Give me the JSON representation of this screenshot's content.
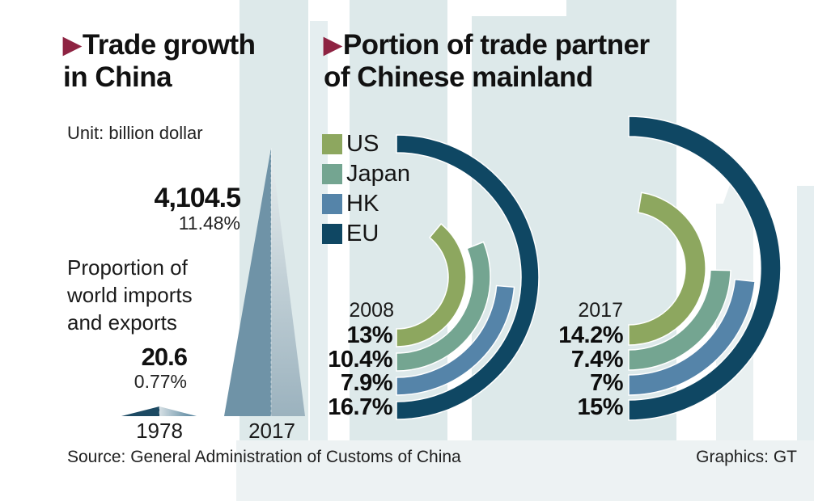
{
  "icons": {
    "title_arrow": "▶"
  },
  "titles": {
    "left": "Trade growth\nin China",
    "right": "Portion of trade partner\nof Chinese mainland"
  },
  "unit_label": "Unit: billion dollar",
  "footer": {
    "source": "Source: General Administration of Customs of China",
    "credit": "Graphics: GT"
  },
  "colors": {
    "accent_maroon": "#8e2342",
    "building_tint": "#dde9ea",
    "building_tint_light": "#e5eef0",
    "spike_1978_left": "#1d4a63",
    "spike_1978_right_start": "#d5dfe4",
    "spike_1978_right_end": "#4e7e98",
    "spike_2017_left": "#6f93a7",
    "spike_2017_right_start": "#e7edee",
    "spike_2017_right_end": "#9bb2be",
    "us": "#8da75f",
    "japan": "#74a591",
    "hk": "#5584a9",
    "eu": "#0f4763"
  },
  "chart_data": [
    {
      "type": "bar",
      "title": "Trade growth in China",
      "unit": "billion dollar",
      "categories": [
        "1978",
        "2017"
      ],
      "values": [
        20.6,
        4104.5
      ],
      "value_labels": [
        "20.6",
        "4,104.5"
      ],
      "share_of_world": [
        "0.77%",
        "11.48%"
      ],
      "note": "Proportion of\nworld imports\nand exports",
      "ylabel": "",
      "xlabel": ""
    },
    {
      "type": "radial-bar",
      "title": "Portion of trade partner of Chinese mainland",
      "categories": [
        "US",
        "Japan",
        "HK",
        "EU"
      ],
      "legend": [
        "US",
        "Japan",
        "HK",
        "EU"
      ],
      "legend_position": "top-left",
      "series": [
        {
          "name": "2008",
          "values": [
            13,
            10.4,
            7.9,
            16.7
          ],
          "labels": [
            "13%",
            "10.4%",
            "7.9%",
            "16.7%"
          ]
        },
        {
          "name": "2017",
          "values": [
            14.2,
            7.4,
            7,
            15
          ],
          "labels": [
            "14.2%",
            "7.4%",
            "7%",
            "15%"
          ]
        }
      ]
    }
  ]
}
